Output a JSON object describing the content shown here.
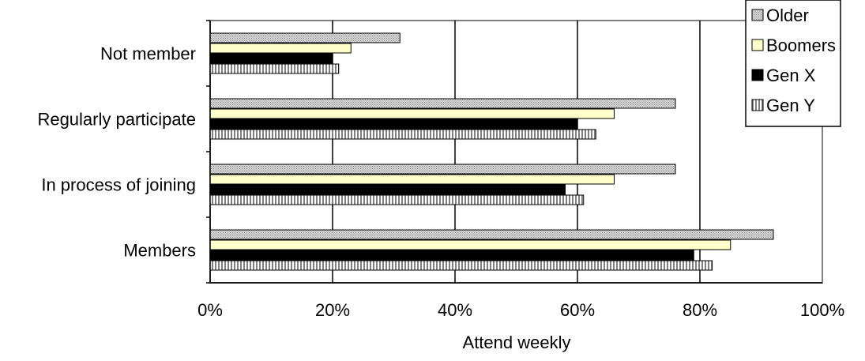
{
  "chart_data": {
    "type": "bar",
    "orientation": "horizontal",
    "title": "",
    "xlabel": "Attend weekly",
    "ylabel": "",
    "xlim": [
      0,
      100
    ],
    "x_ticks": [
      "0%",
      "20%",
      "40%",
      "60%",
      "80%",
      "100%"
    ],
    "grid": true,
    "legend_position": "top-right",
    "categories": [
      "Members",
      "In process of joining",
      "Regularly participate",
      "Not member"
    ],
    "series": [
      {
        "name": "Gen Y",
        "values": [
          82,
          61,
          63,
          21
        ],
        "pattern": "vertical-stripes",
        "color": "#808080"
      },
      {
        "name": "Gen X",
        "values": [
          79,
          58,
          60,
          20
        ],
        "pattern": "solid",
        "color": "#000000"
      },
      {
        "name": "Boomers",
        "values": [
          85,
          66,
          66,
          23
        ],
        "pattern": "solid",
        "color": "#ffffcc"
      },
      {
        "name": "Older",
        "values": [
          92,
          76,
          76,
          31
        ],
        "pattern": "dots",
        "color": "#c0c0c0"
      }
    ],
    "legend_order": [
      "Older",
      "Boomers",
      "Gen X",
      "Gen Y"
    ]
  }
}
